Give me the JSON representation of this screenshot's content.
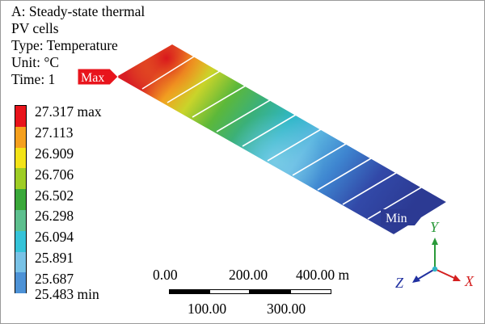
{
  "info": {
    "line1": "A: Steady-state thermal",
    "line2": "PV cells",
    "line3": "Type: Temperature",
    "line4": "Unit: °C",
    "line5": "Time: 1"
  },
  "legend": {
    "labels": [
      "27.317 max",
      "27.113",
      "26.909",
      "26.706",
      "26.502",
      "26.298",
      "26.094",
      "25.891",
      "25.687",
      "25.483 min"
    ],
    "colors": [
      "#e8141c",
      "#f5a01e",
      "#f3e318",
      "#9ecd25",
      "#3aa83a",
      "#5dbf8e",
      "#35c3d8",
      "#79c2e6",
      "#4d92d6",
      "#2f3e98"
    ]
  },
  "probes": {
    "max_label": "Max",
    "min_label": "Min",
    "max_color": "#e8141c"
  },
  "scale_bar": {
    "top_labels": [
      "0.00",
      "200.00",
      "400.00 m"
    ],
    "bottom_labels": [
      "100.00",
      "300.00"
    ]
  },
  "triad": {
    "x_label": "X",
    "y_label": "Y",
    "z_label": "Z",
    "x_color": "#d42020",
    "y_color": "#2a9a3a",
    "z_color": "#2030a0"
  }
}
